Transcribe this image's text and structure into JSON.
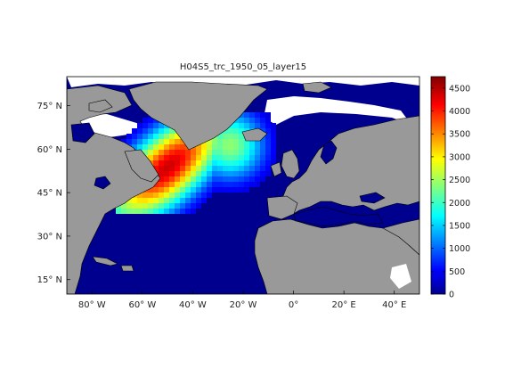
{
  "title": "H04S5_trc_1950_05_layer15",
  "map": {
    "lon_range": [
      -90,
      50
    ],
    "lat_range": [
      10,
      85
    ],
    "lat_ticks": [
      {
        "value": 75,
        "label": "75° N"
      },
      {
        "value": 60,
        "label": "60° N"
      },
      {
        "value": 45,
        "label": "45° N"
      },
      {
        "value": 30,
        "label": "30° N"
      },
      {
        "value": 15,
        "label": "15° N"
      }
    ],
    "lon_ticks": [
      {
        "value": -80,
        "label": "80° W"
      },
      {
        "value": -60,
        "label": "60° W"
      },
      {
        "value": -40,
        "label": "40° W"
      },
      {
        "value": -20,
        "label": "20° W"
      },
      {
        "value": 0,
        "label": "0°"
      },
      {
        "value": 20,
        "label": "20° E"
      },
      {
        "value": 40,
        "label": "40° E"
      }
    ],
    "colors": {
      "land": "#999999",
      "ocean_zero": "#00008f",
      "no_data": "#ffffff",
      "coast": "#000000"
    }
  },
  "colorbar": {
    "min": 0,
    "max": 4750,
    "ticks": [
      {
        "value": 0,
        "label": "0"
      },
      {
        "value": 500,
        "label": "500"
      },
      {
        "value": 1000,
        "label": "1000"
      },
      {
        "value": 1500,
        "label": "1500"
      },
      {
        "value": 2000,
        "label": "2000"
      },
      {
        "value": 2500,
        "label": "2500"
      },
      {
        "value": 3000,
        "label": "3000"
      },
      {
        "value": 3500,
        "label": "3500"
      },
      {
        "value": 4000,
        "label": "4000"
      },
      {
        "value": 4500,
        "label": "4500"
      }
    ],
    "colormap": "jet"
  }
}
